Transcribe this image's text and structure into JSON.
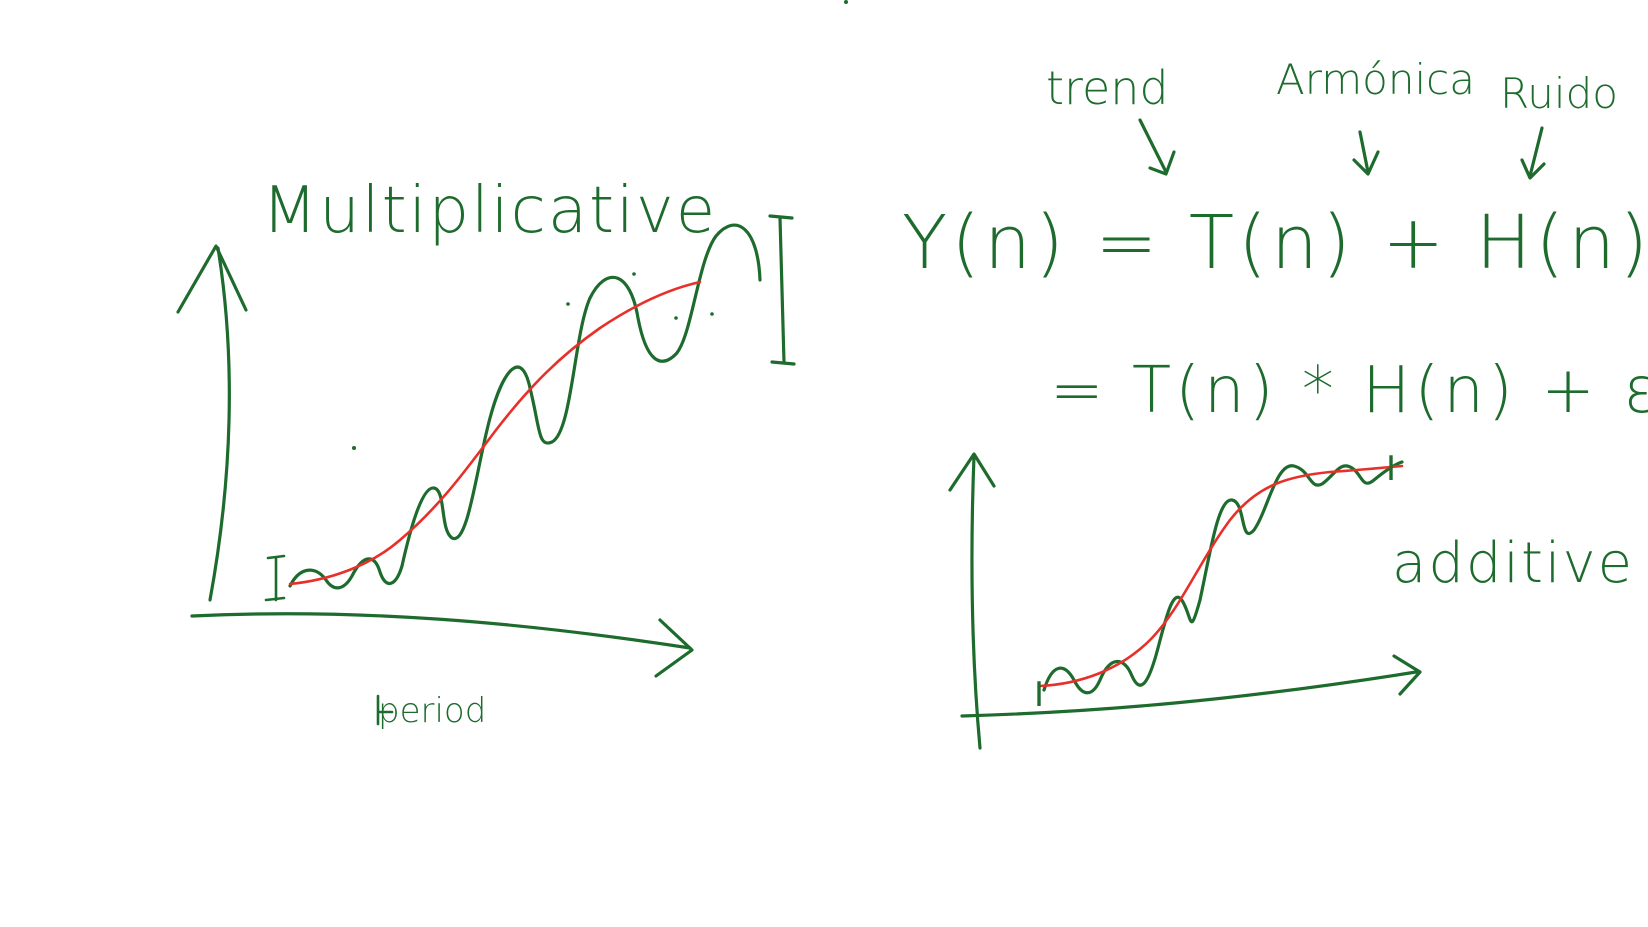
{
  "ink_color": "#1e6b2e",
  "trend_color": "#e8302a",
  "background": "#ffffff",
  "labels": {
    "multiplicative": "Multiplicative",
    "period": "period",
    "trend": "trend",
    "armonica": "Armónica",
    "ruido": "Ruido",
    "additive": "additive",
    "bracket_mark": "I"
  },
  "equations": {
    "line1": "Y(n) = T(n) + H(n) + ε",
    "line2": "= T(n) * H(n) + ε"
  }
}
